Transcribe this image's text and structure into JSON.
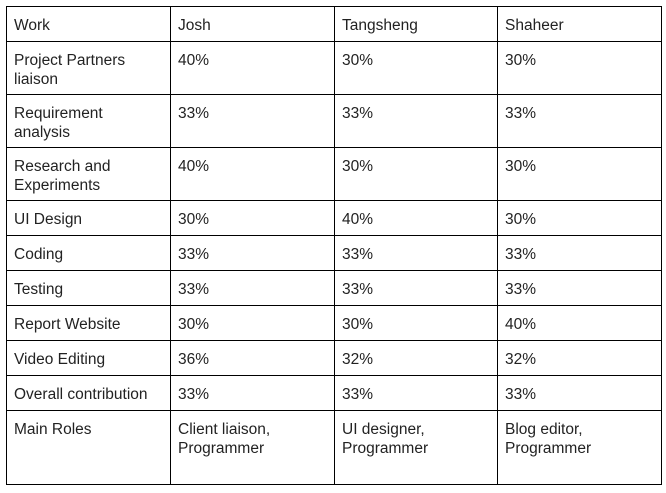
{
  "table": {
    "headers": [
      "Work",
      "Josh",
      "Tangsheng",
      "Shaheer"
    ],
    "rows": [
      [
        "Project Partners liaison",
        "40%",
        "30%",
        "30%"
      ],
      [
        "Requirement analysis",
        "33%",
        "33%",
        "33%"
      ],
      [
        "Research and Experiments",
        "40%",
        "30%",
        "30%"
      ],
      [
        "UI Design",
        "30%",
        "40%",
        "30%"
      ],
      [
        "Coding",
        "33%",
        "33%",
        "33%"
      ],
      [
        "Testing",
        "33%",
        "33%",
        "33%"
      ],
      [
        "Report Website",
        "30%",
        "30%",
        "40%"
      ],
      [
        "Video Editing",
        "36%",
        "32%",
        "32%"
      ],
      [
        "Overall contribution",
        "33%",
        "33%",
        "33%"
      ],
      [
        "Main Roles",
        "Client liaison, Programmer",
        "UI designer, Programmer",
        "Blog editor, Programmer"
      ]
    ]
  }
}
